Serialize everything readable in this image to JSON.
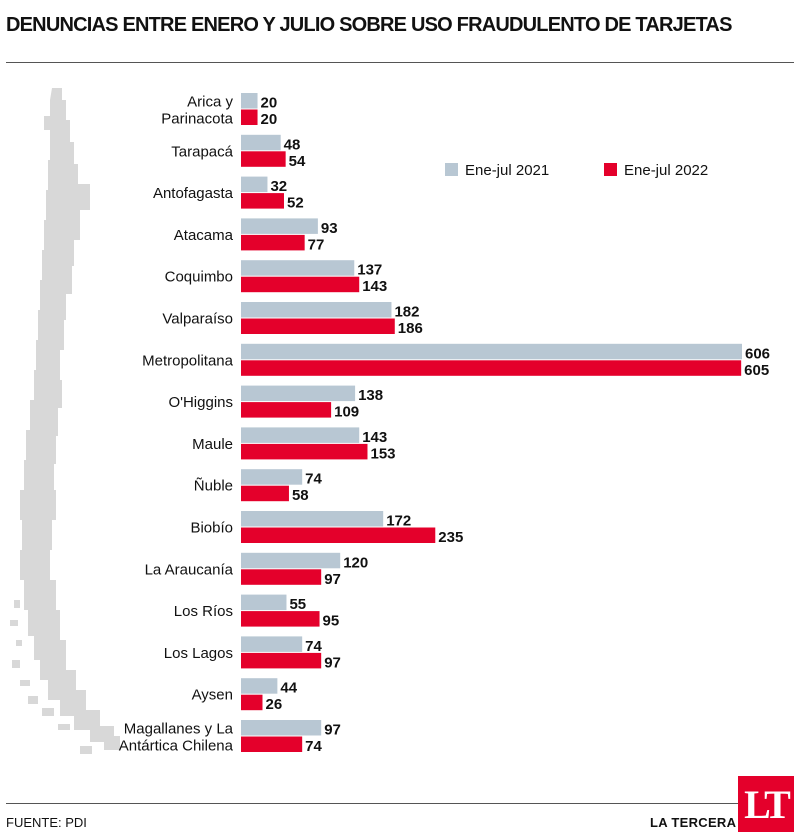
{
  "title": "DENUNCIAS ENTRE ENERO Y JULIO SOBRE USO FRAUDULENTO DE TARJETAS",
  "footer": {
    "source": "FUENTE: PDI",
    "brand": "LA TERCERA",
    "logo_text": "LT"
  },
  "colors": {
    "series_2021": "#b8c7d3",
    "series_2022": "#e4002b",
    "map": "#d8d8d8",
    "rule": "#555555"
  },
  "chart_data": {
    "type": "bar",
    "orientation": "horizontal",
    "legend_position": "top-right",
    "categories": [
      [
        "Arica y",
        "Parinacota"
      ],
      [
        "Tarapacá"
      ],
      [
        "Antofagasta"
      ],
      [
        "Atacama"
      ],
      [
        "Coquimbo"
      ],
      [
        "Valparaíso"
      ],
      [
        "Metropolitana"
      ],
      [
        "O'Higgins"
      ],
      [
        "Maule"
      ],
      [
        "Ñuble"
      ],
      [
        "Biobío"
      ],
      [
        "La Araucanía"
      ],
      [
        "Los Ríos"
      ],
      [
        "Los Lagos"
      ],
      [
        "Aysen"
      ],
      [
        "Magallanes y La",
        "Antártica Chilena"
      ]
    ],
    "series": [
      {
        "name": "Ene-jul 2021",
        "values": [
          20,
          48,
          32,
          93,
          137,
          182,
          606,
          138,
          143,
          74,
          172,
          120,
          55,
          74,
          44,
          97
        ]
      },
      {
        "name": "Ene-jul 2022",
        "values": [
          20,
          54,
          52,
          77,
          143,
          186,
          605,
          109,
          153,
          58,
          235,
          97,
          95,
          97,
          26,
          74
        ]
      }
    ],
    "xlim": [
      0,
      606
    ],
    "grid": false
  }
}
